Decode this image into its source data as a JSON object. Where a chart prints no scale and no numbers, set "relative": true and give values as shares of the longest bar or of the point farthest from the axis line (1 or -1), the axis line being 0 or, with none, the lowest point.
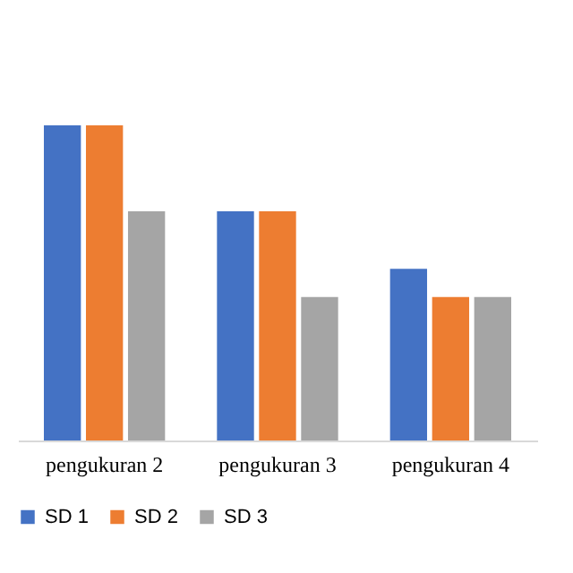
{
  "chart_data": {
    "type": "bar",
    "relative": true,
    "categories": [
      "pengukuran 2",
      "pengukuran 3",
      "pengukuran 4"
    ],
    "series": [
      {
        "name": "SD 1",
        "color": "#4472c4",
        "values": [
          1,
          0.727,
          0.545
        ]
      },
      {
        "name": "SD 2",
        "color": "#ed7d31",
        "values": [
          1,
          0.727,
          0.455
        ]
      },
      {
        "name": "SD 3",
        "color": "#a5a5a5",
        "values": [
          0.727,
          0.455,
          0.455
        ]
      }
    ],
    "legend": "bottom",
    "grid": false
  }
}
